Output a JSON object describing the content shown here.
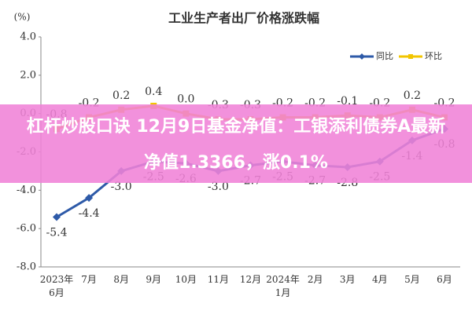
{
  "chart_data": {
    "type": "line",
    "title": "工业生产者出厂价格涨跌幅",
    "y_label": "(%)",
    "categories": [
      "2023年\n6月",
      "7月",
      "8月",
      "9月",
      "10月",
      "11月",
      "12月",
      "2024年\n1月",
      "2月",
      "3月",
      "4月",
      "5月",
      "6月"
    ],
    "series": [
      {
        "name": "同比",
        "color": "#2e5aa8",
        "values": [
          -5.4,
          -4.4,
          -3.0,
          -2.5,
          -2.6,
          -3.0,
          -2.7,
          -2.5,
          -2.7,
          -2.8,
          -2.5,
          -1.4,
          -0.8
        ],
        "value_labels": [
          "-5.4",
          "-4.4",
          "-3.0",
          "-2.5",
          "-2.6",
          "-3.0",
          "-2.7",
          "-2.5",
          "-2.7",
          "-2.8",
          "-2.5",
          "-1.4",
          "-0.8"
        ]
      },
      {
        "name": "环比",
        "color": "#f2c500",
        "values": [
          -0.8,
          -0.2,
          0.2,
          0.4,
          0.0,
          -0.3,
          -0.3,
          -0.2,
          -0.2,
          -0.1,
          -0.2,
          0.2,
          -0.2
        ],
        "value_labels": [
          "-0.8",
          "-0.2",
          "0.2",
          "0.4",
          "0.0",
          "-0.3",
          "-0.3",
          "-0.2",
          "-0.2",
          "-0.1",
          "-0.2",
          "0.2",
          "-0.2"
        ]
      }
    ],
    "ylim": [
      -8,
      4
    ],
    "yticks": [
      {
        "value": -8,
        "label": "-8.0"
      },
      {
        "value": -6,
        "label": "-6.0"
      },
      {
        "value": -4,
        "label": "-4.0"
      },
      {
        "value": -2,
        "label": "-2.0"
      },
      {
        "value": 0,
        "label": "0.0"
      },
      {
        "value": 2,
        "label": "2.0"
      },
      {
        "value": 4,
        "label": "4.0"
      }
    ],
    "grid": false
  },
  "overlay": {
    "line1": "杠杆炒股口诀 12月9日基金净值：工银添利债券A最新",
    "line2": "净值1.3366，涨0.1%"
  }
}
